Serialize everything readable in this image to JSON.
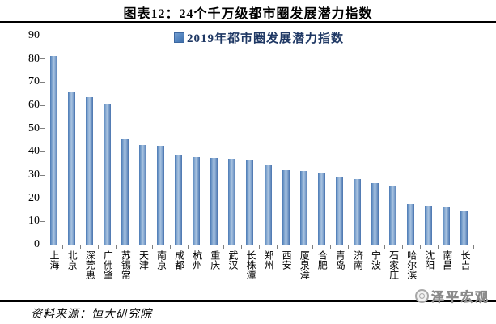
{
  "title": "图表12：24个千万级都市圈发展潜力指数",
  "legend": {
    "label": "2019年都市圈发展潜力指数",
    "marker_color": "#4f81bd"
  },
  "source": "资料来源：恒大研究院",
  "watermark": "泽平宏观",
  "colors": {
    "bar_edge": "#4a77b4",
    "bar_center": "#aac3e0",
    "legend_text": "#1f3864",
    "axis": "#7f7f7f",
    "rule": "#000000",
    "watermark_gray": "#9b9b9b"
  },
  "chart_data": {
    "type": "bar",
    "title": "图表12：24个千万级都市圈发展潜力指数",
    "legend_entries": [
      "2019年都市圈发展潜力指数"
    ],
    "legend_position": "top-center",
    "grid": false,
    "categories": [
      "上海",
      "北京",
      "深莞惠",
      "广佛肇",
      "苏锡常",
      "天津",
      "南京",
      "成都",
      "杭州",
      "重庆",
      "武汉",
      "长株潭",
      "郑州",
      "西安",
      "厦泉漳",
      "合肥",
      "青岛",
      "济南",
      "宁波",
      "石家庄",
      "哈尔滨",
      "沈阳",
      "南昌",
      "长吉"
    ],
    "values": [
      81.3,
      65.5,
      63.6,
      60.2,
      45.2,
      42.8,
      42.5,
      38.7,
      37.5,
      37.2,
      37.1,
      36.6,
      34.1,
      32.0,
      31.8,
      30.9,
      29.1,
      28.1,
      26.4,
      25.0,
      17.3,
      16.8,
      16.1,
      14.3
    ],
    "xlabel": "",
    "ylabel": "",
    "ylim": [
      0,
      90
    ],
    "ytick_interval": 10,
    "yticks": [
      0,
      10,
      20,
      30,
      40,
      50,
      60,
      70,
      80,
      90
    ]
  }
}
